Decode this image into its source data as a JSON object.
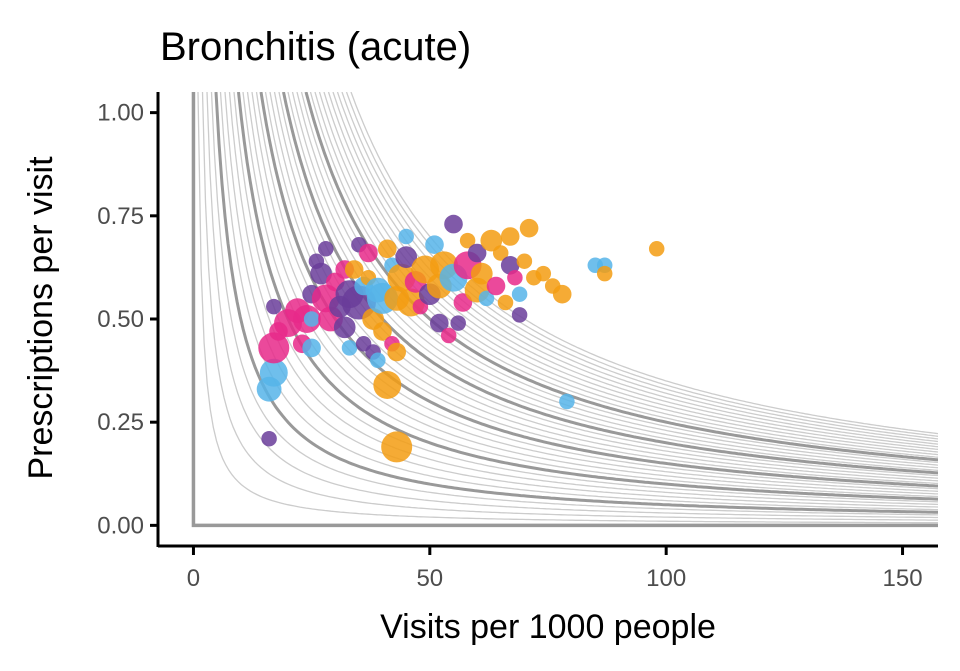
{
  "chart_data": {
    "type": "scatter",
    "title": "Bronchitis (acute)",
    "xlabel": "Visits per 1000 people",
    "ylabel": "Prescriptions per visit",
    "xlim": [
      -7.5,
      157.5
    ],
    "ylim": [
      -0.05,
      1.05
    ],
    "xticks": [
      "0",
      "50",
      "100",
      "150"
    ],
    "yticks": [
      "0.00",
      "0.25",
      "0.50",
      "0.75",
      "1.00"
    ],
    "grid": false,
    "legend": "none",
    "colors": {
      "purple": "#6a3d9a",
      "pink": "#e7298a",
      "blue": "#56b4e9",
      "orange": "#f39c12",
      "contour_major": "#999999",
      "contour_minor": "#cccccc",
      "axis": "#000000"
    },
    "contours": {
      "major": [
        0,
        5,
        10,
        15,
        20,
        25
      ],
      "minor": [
        1,
        2,
        3,
        4,
        6,
        7,
        8,
        9,
        11,
        12,
        13,
        14,
        16,
        17,
        18,
        19,
        21,
        22,
        23,
        24,
        26,
        27,
        28,
        29,
        30,
        31,
        32,
        33,
        34,
        35
      ]
    },
    "points": [
      {
        "x": 16,
        "y": 0.33,
        "size": 8,
        "color": "blue"
      },
      {
        "x": 17,
        "y": 0.37,
        "size": 9,
        "color": "blue"
      },
      {
        "x": 16,
        "y": 0.21,
        "size": 5,
        "color": "purple"
      },
      {
        "x": 17,
        "y": 0.43,
        "size": 10,
        "color": "pink"
      },
      {
        "x": 17,
        "y": 0.53,
        "size": 5,
        "color": "purple"
      },
      {
        "x": 18,
        "y": 0.47,
        "size": 6,
        "color": "pink"
      },
      {
        "x": 20,
        "y": 0.49,
        "size": 9,
        "color": "pink"
      },
      {
        "x": 22,
        "y": 0.52,
        "size": 8,
        "color": "pink"
      },
      {
        "x": 23,
        "y": 0.44,
        "size": 6,
        "color": "pink"
      },
      {
        "x": 24,
        "y": 0.5,
        "size": 9,
        "color": "pink"
      },
      {
        "x": 25,
        "y": 0.43,
        "size": 6,
        "color": "blue"
      },
      {
        "x": 25,
        "y": 0.5,
        "size": 5,
        "color": "blue"
      },
      {
        "x": 25,
        "y": 0.56,
        "size": 6,
        "color": "purple"
      },
      {
        "x": 26,
        "y": 0.64,
        "size": 5,
        "color": "purple"
      },
      {
        "x": 27,
        "y": 0.61,
        "size": 7,
        "color": "purple"
      },
      {
        "x": 28,
        "y": 0.67,
        "size": 5,
        "color": "purple"
      },
      {
        "x": 28,
        "y": 0.55,
        "size": 9,
        "color": "pink"
      },
      {
        "x": 29,
        "y": 0.5,
        "size": 8,
        "color": "pink"
      },
      {
        "x": 30,
        "y": 0.59,
        "size": 6,
        "color": "pink"
      },
      {
        "x": 31,
        "y": 0.53,
        "size": 7,
        "color": "purple"
      },
      {
        "x": 32,
        "y": 0.62,
        "size": 6,
        "color": "pink"
      },
      {
        "x": 32,
        "y": 0.48,
        "size": 7,
        "color": "purple"
      },
      {
        "x": 33,
        "y": 0.43,
        "size": 5,
        "color": "blue"
      },
      {
        "x": 33,
        "y": 0.56,
        "size": 9,
        "color": "purple"
      },
      {
        "x": 34,
        "y": 0.62,
        "size": 6,
        "color": "orange"
      },
      {
        "x": 35,
        "y": 0.54,
        "size": 11,
        "color": "purple"
      },
      {
        "x": 35,
        "y": 0.68,
        "size": 5,
        "color": "purple"
      },
      {
        "x": 36,
        "y": 0.44,
        "size": 5,
        "color": "purple"
      },
      {
        "x": 36,
        "y": 0.58,
        "size": 6,
        "color": "blue"
      },
      {
        "x": 37,
        "y": 0.66,
        "size": 6,
        "color": "pink"
      },
      {
        "x": 37,
        "y": 0.6,
        "size": 5,
        "color": "orange"
      },
      {
        "x": 38,
        "y": 0.5,
        "size": 7,
        "color": "orange"
      },
      {
        "x": 38,
        "y": 0.42,
        "size": 5,
        "color": "purple"
      },
      {
        "x": 39,
        "y": 0.4,
        "size": 5,
        "color": "blue"
      },
      {
        "x": 39,
        "y": 0.57,
        "size": 8,
        "color": "blue"
      },
      {
        "x": 40,
        "y": 0.47,
        "size": 6,
        "color": "orange"
      },
      {
        "x": 40,
        "y": 0.55,
        "size": 10,
        "color": "blue"
      },
      {
        "x": 41,
        "y": 0.34,
        "size": 9,
        "color": "orange"
      },
      {
        "x": 41,
        "y": 0.67,
        "size": 6,
        "color": "orange"
      },
      {
        "x": 42,
        "y": 0.63,
        "size": 5,
        "color": "blue"
      },
      {
        "x": 42,
        "y": 0.44,
        "size": 5,
        "color": "pink"
      },
      {
        "x": 43,
        "y": 0.19,
        "size": 10,
        "color": "orange"
      },
      {
        "x": 43,
        "y": 0.42,
        "size": 6,
        "color": "orange"
      },
      {
        "x": 43,
        "y": 0.55,
        "size": 8,
        "color": "orange"
      },
      {
        "x": 44,
        "y": 0.6,
        "size": 9,
        "color": "orange"
      },
      {
        "x": 45,
        "y": 0.7,
        "size": 5,
        "color": "blue"
      },
      {
        "x": 45,
        "y": 0.65,
        "size": 7,
        "color": "purple"
      },
      {
        "x": 46,
        "y": 0.54,
        "size": 9,
        "color": "orange"
      },
      {
        "x": 47,
        "y": 0.59,
        "size": 7,
        "color": "pink"
      },
      {
        "x": 48,
        "y": 0.53,
        "size": 5,
        "color": "pink"
      },
      {
        "x": 49,
        "y": 0.62,
        "size": 9,
        "color": "orange"
      },
      {
        "x": 50,
        "y": 0.56,
        "size": 7,
        "color": "purple"
      },
      {
        "x": 51,
        "y": 0.68,
        "size": 6,
        "color": "blue"
      },
      {
        "x": 52,
        "y": 0.49,
        "size": 6,
        "color": "purple"
      },
      {
        "x": 52,
        "y": 0.58,
        "size": 8,
        "color": "orange"
      },
      {
        "x": 53,
        "y": 0.63,
        "size": 9,
        "color": "orange"
      },
      {
        "x": 54,
        "y": 0.46,
        "size": 5,
        "color": "pink"
      },
      {
        "x": 55,
        "y": 0.73,
        "size": 6,
        "color": "purple"
      },
      {
        "x": 55,
        "y": 0.6,
        "size": 9,
        "color": "blue"
      },
      {
        "x": 56,
        "y": 0.49,
        "size": 5,
        "color": "purple"
      },
      {
        "x": 57,
        "y": 0.54,
        "size": 6,
        "color": "pink"
      },
      {
        "x": 58,
        "y": 0.63,
        "size": 9,
        "color": "pink"
      },
      {
        "x": 58,
        "y": 0.69,
        "size": 5,
        "color": "orange"
      },
      {
        "x": 60,
        "y": 0.57,
        "size": 8,
        "color": "orange"
      },
      {
        "x": 60,
        "y": 0.66,
        "size": 6,
        "color": "purple"
      },
      {
        "x": 61,
        "y": 0.61,
        "size": 7,
        "color": "orange"
      },
      {
        "x": 62,
        "y": 0.55,
        "size": 5,
        "color": "blue"
      },
      {
        "x": 63,
        "y": 0.69,
        "size": 7,
        "color": "orange"
      },
      {
        "x": 64,
        "y": 0.58,
        "size": 6,
        "color": "pink"
      },
      {
        "x": 65,
        "y": 0.66,
        "size": 5,
        "color": "orange"
      },
      {
        "x": 66,
        "y": 0.54,
        "size": 5,
        "color": "orange"
      },
      {
        "x": 67,
        "y": 0.7,
        "size": 6,
        "color": "orange"
      },
      {
        "x": 67,
        "y": 0.63,
        "size": 6,
        "color": "purple"
      },
      {
        "x": 68,
        "y": 0.6,
        "size": 5,
        "color": "pink"
      },
      {
        "x": 69,
        "y": 0.56,
        "size": 5,
        "color": "blue"
      },
      {
        "x": 69,
        "y": 0.51,
        "size": 5,
        "color": "purple"
      },
      {
        "x": 70,
        "y": 0.64,
        "size": 5,
        "color": "orange"
      },
      {
        "x": 71,
        "y": 0.72,
        "size": 6,
        "color": "orange"
      },
      {
        "x": 72,
        "y": 0.6,
        "size": 5,
        "color": "orange"
      },
      {
        "x": 74,
        "y": 0.61,
        "size": 5,
        "color": "orange"
      },
      {
        "x": 76,
        "y": 0.58,
        "size": 5,
        "color": "orange"
      },
      {
        "x": 78,
        "y": 0.56,
        "size": 6,
        "color": "orange"
      },
      {
        "x": 79,
        "y": 0.3,
        "size": 5,
        "color": "blue"
      },
      {
        "x": 85,
        "y": 0.63,
        "size": 5,
        "color": "blue"
      },
      {
        "x": 87,
        "y": 0.63,
        "size": 5,
        "color": "blue"
      },
      {
        "x": 87,
        "y": 0.61,
        "size": 5,
        "color": "orange"
      },
      {
        "x": 98,
        "y": 0.67,
        "size": 5,
        "color": "orange"
      }
    ]
  }
}
